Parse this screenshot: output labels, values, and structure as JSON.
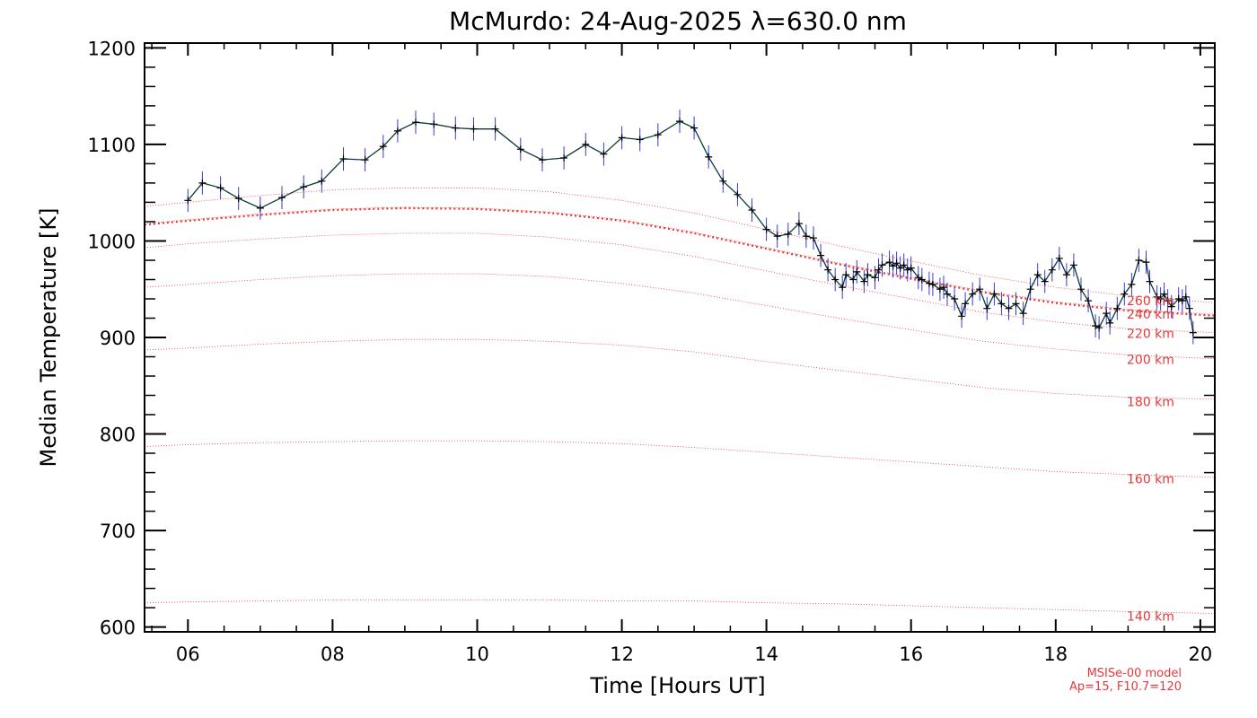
{
  "chart_data": {
    "type": "line",
    "title": "McMurdo: 24-Aug-2025 λ=630.0 nm",
    "xlabel": "Time [Hours UT]",
    "ylabel": "Median Temperature [K]",
    "xlim": [
      5.4,
      20.2
    ],
    "ylim": [
      595,
      1205
    ],
    "x_ticks": [
      6,
      8,
      10,
      12,
      14,
      16,
      18,
      20
    ],
    "x_tick_labels": [
      "06",
      "08",
      "10",
      "12",
      "14",
      "16",
      "18",
      "20"
    ],
    "y_ticks": [
      600,
      700,
      800,
      900,
      1000,
      1100,
      1200
    ],
    "y_tick_labels": [
      "600",
      "700",
      "800",
      "900",
      "1000",
      "1100",
      "1200"
    ],
    "grid": false,
    "measured": {
      "line_color": "#0b3a3e",
      "errorbar_color": "#3a3ad8",
      "marker_color": "#000000",
      "error": 12,
      "x": [
        6.0,
        6.2,
        6.45,
        6.7,
        7.0,
        7.3,
        7.6,
        7.85,
        8.15,
        8.45,
        8.7,
        8.9,
        9.15,
        9.4,
        9.7,
        9.95,
        10.25,
        10.6,
        10.9,
        11.2,
        11.5,
        11.75,
        12.0,
        12.25,
        12.5,
        12.8,
        13.0,
        13.2,
        13.4,
        13.6,
        13.8,
        14.0,
        14.15,
        14.3,
        14.45,
        14.55,
        14.65,
        14.75,
        14.85,
        14.95,
        15.05,
        15.1,
        15.2,
        15.25,
        15.35,
        15.4,
        15.5,
        15.55,
        15.6,
        15.7,
        15.75,
        15.8,
        15.85,
        15.9,
        15.95,
        16.0,
        16.1,
        16.15,
        16.25,
        16.3,
        16.4,
        16.45,
        16.5,
        16.6,
        16.7,
        16.75,
        16.85,
        16.95,
        17.05,
        17.15,
        17.25,
        17.35,
        17.45,
        17.55,
        17.65,
        17.75,
        17.85,
        17.95,
        18.05,
        18.15,
        18.25,
        18.35,
        18.45,
        18.55,
        18.6,
        18.7,
        18.75,
        18.85,
        18.95,
        19.05,
        19.15,
        19.25,
        19.3,
        19.4,
        19.45,
        19.5,
        19.55,
        19.6,
        19.7,
        19.75,
        19.8,
        19.85,
        19.9
      ],
      "y": [
        1042,
        1060,
        1055,
        1044,
        1034,
        1045,
        1056,
        1062,
        1085,
        1084,
        1098,
        1114,
        1123,
        1121,
        1117,
        1116,
        1116,
        1095,
        1084,
        1086,
        1100,
        1090,
        1107,
        1105,
        1110,
        1124,
        1117,
        1087,
        1062,
        1048,
        1032,
        1012,
        1005,
        1007,
        1018,
        1005,
        1003,
        985,
        970,
        960,
        952,
        965,
        960,
        968,
        958,
        965,
        962,
        970,
        975,
        978,
        974,
        977,
        972,
        975,
        970,
        972,
        962,
        960,
        956,
        955,
        950,
        952,
        945,
        940,
        922,
        935,
        945,
        950,
        930,
        945,
        935,
        930,
        935,
        925,
        950,
        965,
        958,
        970,
        982,
        965,
        975,
        950,
        938,
        912,
        910,
        925,
        915,
        930,
        945,
        955,
        980,
        978,
        958,
        942,
        940,
        945,
        938,
        932,
        940,
        938,
        942,
        930,
        905
      ]
    },
    "model": {
      "name": "MSISe-00 model",
      "parameters": "Ap=15, F10.7=120",
      "color": "#e8383c",
      "x": [
        5.4,
        6,
        7,
        8,
        9,
        10,
        11,
        12,
        13,
        14,
        15,
        16,
        17,
        18,
        19,
        20.2
      ],
      "altitudes": [
        {
          "label": "140 km",
          "y": [
            625,
            626,
            627,
            628,
            628,
            628,
            628,
            627,
            627,
            625,
            624,
            622,
            620,
            618,
            616,
            614
          ]
        },
        {
          "label": "160 km",
          "y": [
            787,
            789,
            791,
            792,
            793,
            793,
            792,
            790,
            786,
            781,
            776,
            771,
            766,
            761,
            758,
            755
          ]
        },
        {
          "label": "180 km",
          "y": [
            887,
            889,
            893,
            896,
            898,
            898,
            896,
            892,
            885,
            875,
            866,
            857,
            848,
            842,
            838,
            836
          ]
        },
        {
          "label": "200 km",
          "y": [
            952,
            955,
            960,
            964,
            966,
            966,
            963,
            956,
            946,
            933,
            920,
            908,
            896,
            888,
            882,
            878
          ]
        },
        {
          "label": "220 km",
          "y": [
            993,
            997,
            1002,
            1006,
            1008,
            1008,
            1004,
            996,
            984,
            969,
            954,
            940,
            926,
            916,
            909,
            905
          ]
        },
        {
          "label": "240 km",
          "y": [
            1018,
            1022,
            1028,
            1033,
            1035,
            1034,
            1030,
            1022,
            1009,
            993,
            977,
            962,
            948,
            937,
            929,
            924
          ]
        },
        {
          "label": "260 km",
          "y": [
            1036,
            1040,
            1047,
            1053,
            1055,
            1055,
            1051,
            1042,
            1029,
            1012,
            995,
            979,
            964,
            952,
            943,
            936
          ]
        }
      ]
    }
  }
}
